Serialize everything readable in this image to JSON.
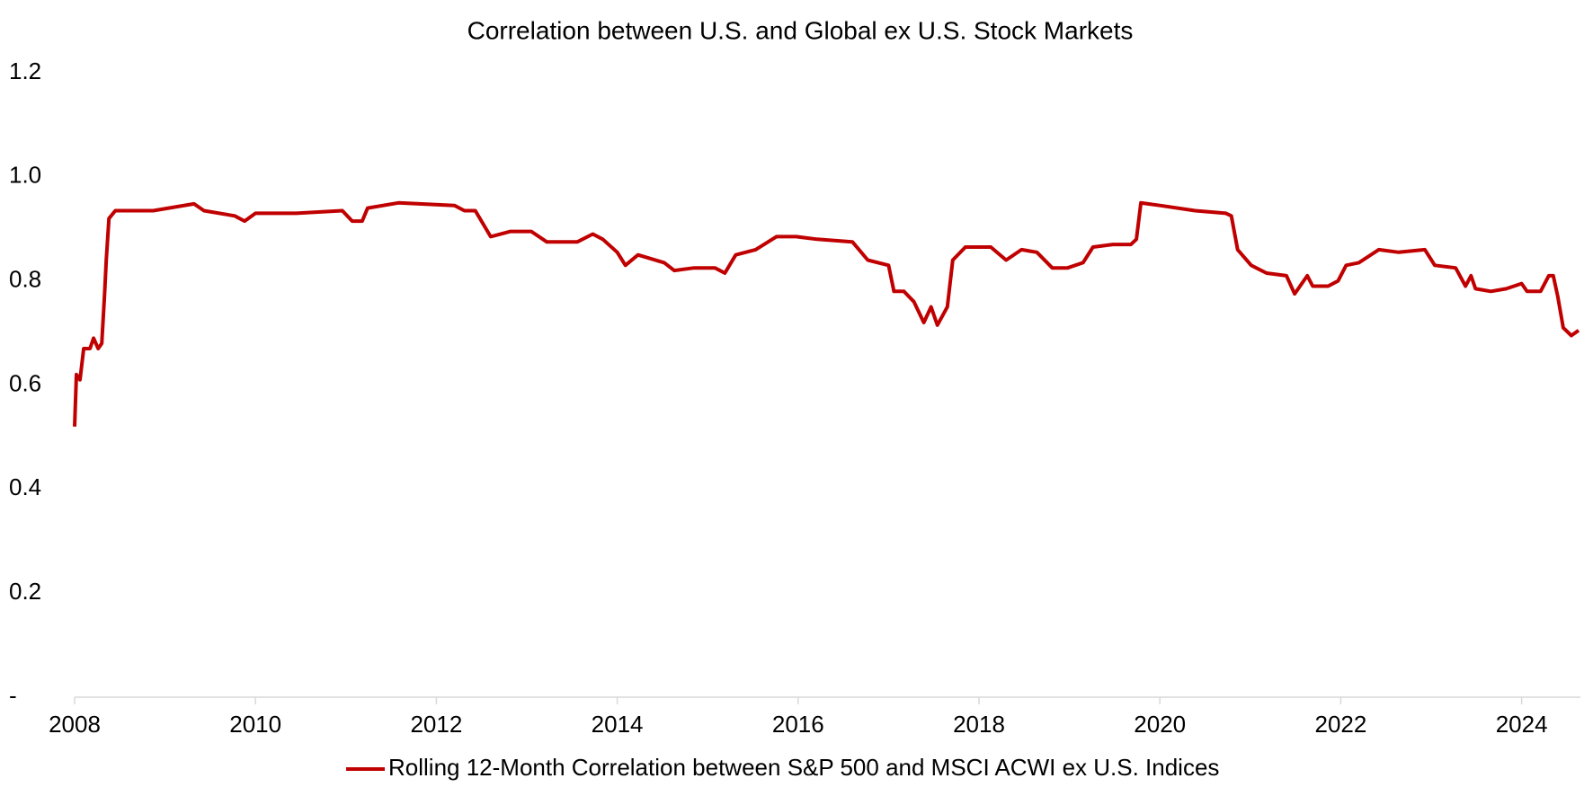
{
  "chart_data": {
    "type": "line",
    "title": "Correlation between U.S. and Global ex U.S. Stock Markets",
    "x": [
      2008.0,
      2008.02,
      2008.06,
      2008.1,
      2008.17,
      2008.21,
      2008.26,
      2008.3,
      2008.33,
      2008.35,
      2008.38,
      2008.45,
      2008.87,
      2009.32,
      2009.43,
      2009.77,
      2009.88,
      2010.0,
      2010.45,
      2010.96,
      2011.07,
      2011.18,
      2011.24,
      2011.58,
      2012.2,
      2012.31,
      2012.43,
      2012.6,
      2012.82,
      2013.05,
      2013.22,
      2013.56,
      2013.73,
      2013.84,
      2014.0,
      2014.09,
      2014.23,
      2014.52,
      2014.63,
      2014.85,
      2015.08,
      2015.19,
      2015.31,
      2015.53,
      2015.76,
      2015.98,
      2016.21,
      2016.6,
      2016.77,
      2017.0,
      2017.06,
      2017.17,
      2017.28,
      2017.39,
      2017.47,
      2017.54,
      2017.65,
      2017.71,
      2017.85,
      2018.13,
      2018.3,
      2018.47,
      2018.64,
      2018.81,
      2018.98,
      2019.15,
      2019.26,
      2019.48,
      2019.68,
      2019.74,
      2019.79,
      2020.0,
      2020.39,
      2020.73,
      2020.79,
      2020.86,
      2021.01,
      2021.18,
      2021.4,
      2021.49,
      2021.63,
      2021.69,
      2021.86,
      2021.97,
      2022.06,
      2022.2,
      2022.42,
      2022.64,
      2022.93,
      2023.04,
      2023.27,
      2023.38,
      2023.44,
      2023.49,
      2023.66,
      2023.83,
      2024.0,
      2024.06,
      2024.21,
      2024.3,
      2024.35,
      2024.4,
      2024.46,
      2024.55,
      2024.63
    ],
    "series": [
      {
        "name": "Rolling 12-Month Correlation between S&P 500 and MSCI ACWI ex U.S. Indices",
        "color": "#c00000",
        "values": [
          0.52,
          0.62,
          0.61,
          0.67,
          0.67,
          0.69,
          0.67,
          0.68,
          0.77,
          0.84,
          0.92,
          0.935,
          0.935,
          0.948,
          0.935,
          0.925,
          0.915,
          0.93,
          0.93,
          0.935,
          0.915,
          0.915,
          0.94,
          0.95,
          0.945,
          0.935,
          0.935,
          0.885,
          0.895,
          0.895,
          0.875,
          0.875,
          0.89,
          0.88,
          0.855,
          0.83,
          0.85,
          0.835,
          0.82,
          0.825,
          0.825,
          0.815,
          0.85,
          0.86,
          0.885,
          0.885,
          0.88,
          0.875,
          0.84,
          0.83,
          0.78,
          0.78,
          0.76,
          0.72,
          0.75,
          0.715,
          0.75,
          0.84,
          0.865,
          0.865,
          0.84,
          0.86,
          0.855,
          0.825,
          0.825,
          0.835,
          0.865,
          0.87,
          0.87,
          0.88,
          0.95,
          0.945,
          0.935,
          0.93,
          0.925,
          0.86,
          0.83,
          0.815,
          0.81,
          0.775,
          0.81,
          0.79,
          0.79,
          0.8,
          0.83,
          0.835,
          0.86,
          0.855,
          0.86,
          0.83,
          0.825,
          0.79,
          0.81,
          0.785,
          0.78,
          0.785,
          0.795,
          0.78,
          0.78,
          0.81,
          0.81,
          0.77,
          0.71,
          0.695,
          0.705
        ]
      }
    ],
    "xlim": [
      2008,
      2024.65
    ],
    "xticks": [
      2008,
      2010,
      2012,
      2014,
      2016,
      2018,
      2020,
      2022,
      2024
    ],
    "ylim": [
      0,
      1.2
    ],
    "yticks": [
      {
        "value": 0,
        "label": "-"
      },
      0.2,
      0.4,
      0.6,
      0.8,
      {
        "value": 1,
        "label": "1.0"
      },
      1.2
    ],
    "grid": false,
    "legend": "bottom"
  }
}
